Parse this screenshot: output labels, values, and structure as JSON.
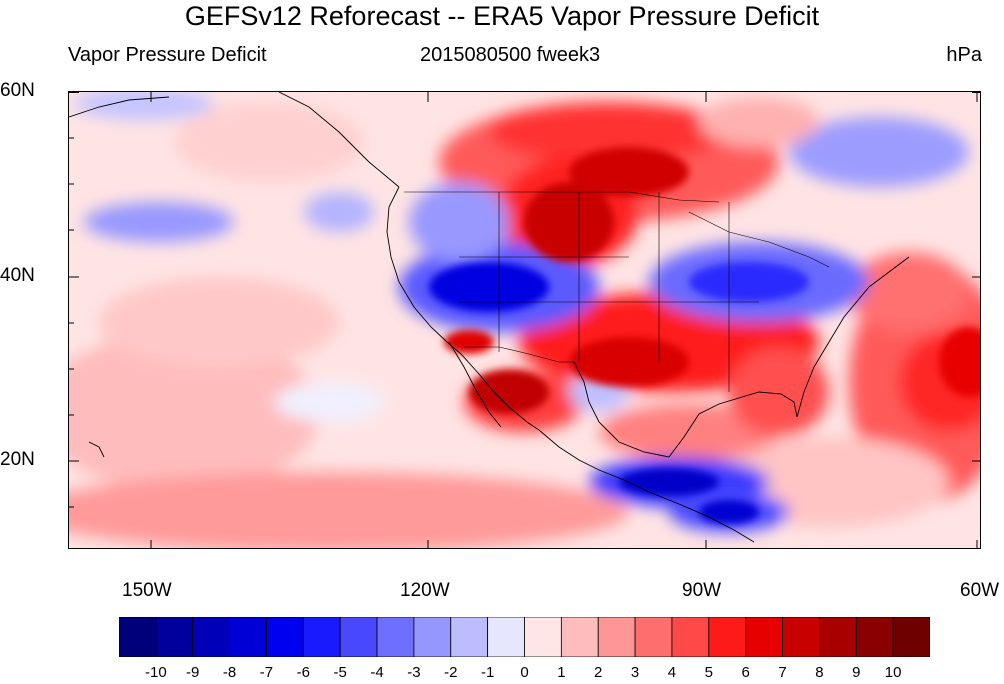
{
  "title": "GEFSv12 Reforecast -- ERA5 Vapor Pressure Deficit",
  "subtitle": {
    "left": "Vapor Pressure Deficit",
    "center": "2015080500 fweek3",
    "right": "hPa"
  },
  "chart_data": {
    "type": "heatmap",
    "title": "GEFSv12 Reforecast -- ERA5 Vapor Pressure Deficit",
    "variable": "Vapor Pressure Deficit",
    "units": "hPa",
    "valid": "2015080500 fweek3",
    "lat_range": [
      10,
      60
    ],
    "lon_range": [
      -160,
      -60
    ],
    "y_ticks": [
      "60N",
      "40N",
      "20N"
    ],
    "x_ticks": [
      "150W",
      "120W",
      "90W",
      "60W"
    ],
    "colorbar": {
      "labels": [
        "-10",
        "-9",
        "-8",
        "-7",
        "-6",
        "-5",
        "-4",
        "-3",
        "-2",
        "-1",
        "0",
        "1",
        "2",
        "3",
        "4",
        "5",
        "6",
        "7",
        "8",
        "9",
        "10"
      ],
      "colors": [
        "#00007a",
        "#00009c",
        "#0000b8",
        "#0000d6",
        "#0000f0",
        "#1a1aff",
        "#4848ff",
        "#6e6eff",
        "#9696ff",
        "#bcbcff",
        "#e6e6ff",
        "#ffe6e6",
        "#ffbcbc",
        "#ff9696",
        "#ff6e6e",
        "#ff4848",
        "#ff1a1a",
        "#e60000",
        "#c80000",
        "#a80000",
        "#8a0000",
        "#6e0000"
      ]
    }
  }
}
